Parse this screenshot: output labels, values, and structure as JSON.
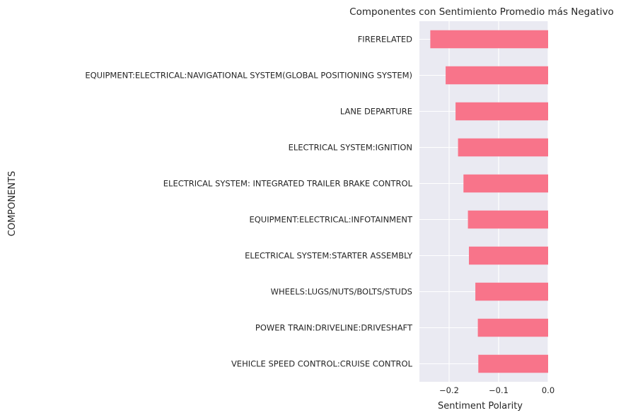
{
  "chart_data": {
    "type": "bar",
    "orientation": "horizontal",
    "title": "Componentes con Sentimiento Promedio más Negativo",
    "xlabel": "Sentiment Polarity",
    "ylabel": "COMPONENTS",
    "xlim": [
      -0.26,
      0.0
    ],
    "xticks": [
      -0.2,
      -0.1,
      0.0
    ],
    "xtick_labels": [
      "−0.2",
      "−0.1",
      "0.0"
    ],
    "grid": true,
    "bar_color": "#f8748a",
    "background_color": "#eaeaf2",
    "categories": [
      "FIRERELATED",
      "EQUIPMENT:ELECTRICAL:NAVIGATIONAL SYSTEM(GLOBAL POSITIONING SYSTEM)",
      "LANE DEPARTURE",
      "ELECTRICAL SYSTEM:IGNITION",
      "ELECTRICAL SYSTEM: INTEGRATED TRAILER BRAKE CONTROL",
      "EQUIPMENT:ELECTRICAL:INFOTAINMENT",
      "ELECTRICAL SYSTEM:STARTER ASSEMBLY",
      "WHEELS:LUGS/NUTS/BOLTS/STUDS",
      "POWER TRAIN:DRIVELINE:DRIVESHAFT",
      "VEHICLE SPEED CONTROL:CRUISE CONTROL"
    ],
    "values": [
      -0.238,
      -0.207,
      -0.187,
      -0.182,
      -0.171,
      -0.162,
      -0.16,
      -0.147,
      -0.142,
      -0.141
    ]
  }
}
